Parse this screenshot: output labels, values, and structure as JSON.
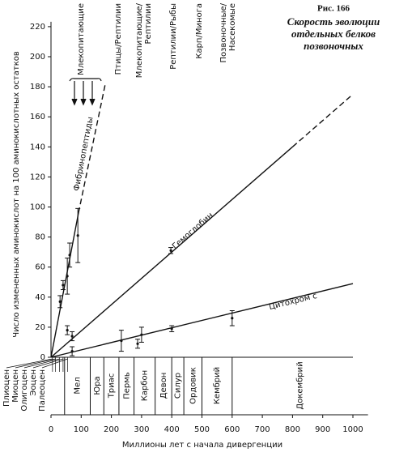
{
  "chart_data": {
    "type": "line",
    "figure_number": "Рис. 166",
    "title": [
      "Скорость эволюции",
      "отдельных белков",
      "позвоночных"
    ],
    "xlabel": "Миллионы лет с начала дивергенции",
    "ylabel": "Число измененных аминокислот на 100 аминокислотных остатков",
    "xlim": [
      0,
      1050
    ],
    "ylim": [
      0,
      230
    ],
    "xticks": [
      0,
      100,
      200,
      300,
      400,
      500,
      600,
      700,
      800,
      900,
      1000
    ],
    "yticks": [
      0,
      20,
      40,
      60,
      80,
      100,
      120,
      140,
      160,
      180,
      200,
      220
    ],
    "color": "#111111",
    "series": [
      {
        "name": "Фибринопептиды",
        "x": [
          0,
          91,
          180
        ],
        "values": [
          0,
          96,
          182
        ],
        "dashed_from": 1,
        "points": {
          "x": [
            30,
            40,
            54,
            62,
            89
          ],
          "values": [
            37,
            48,
            54,
            68,
            81
          ],
          "errors": [
            4,
            3,
            12,
            8,
            18
          ]
        }
      },
      {
        "name": "Гемоглобин",
        "x": [
          0,
          800,
          1000
        ],
        "values": [
          0,
          140,
          175
        ],
        "dashed_from": 1,
        "points": {
          "x": [
            54,
            70,
            397
          ],
          "values": [
            18,
            14,
            71
          ],
          "errors": [
            3,
            3,
            2
          ]
        }
      },
      {
        "name": "Цитохром с",
        "x": [
          0,
          1000
        ],
        "values": [
          0,
          49
        ],
        "dashed_from": null,
        "points": {
          "x": [
            70,
            233,
            287,
            300,
            400,
            600
          ],
          "values": [
            4,
            11,
            9,
            15,
            19,
            26
          ],
          "errors": [
            3,
            7,
            3,
            5,
            2,
            5
          ]
        }
      }
    ],
    "divergences": [
      {
        "label": "Млекопитающие",
        "x": 99
      },
      {
        "label": "Птицы/Рептилии",
        "x": 222
      },
      {
        "label": "Млекопитающие/ Рептилии",
        "x": 305
      },
      {
        "label": "Рептилии/Рыбы",
        "x": 405
      },
      {
        "label": "Карп/Минога",
        "x": 490
      },
      {
        "label": "Позвоночные/ Насекомые",
        "x": 585
      }
    ],
    "periods": [
      {
        "label": "Мел",
        "start": 45,
        "end": 130
      },
      {
        "label": "Юра",
        "start": 130,
        "end": 175
      },
      {
        "label": "Триас",
        "start": 175,
        "end": 225
      },
      {
        "label": "Пермь",
        "start": 225,
        "end": 275
      },
      {
        "label": "Карбон",
        "start": 275,
        "end": 345
      },
      {
        "label": "Девон",
        "start": 345,
        "end": 400
      },
      {
        "label": "Силур",
        "start": 400,
        "end": 440
      },
      {
        "label": "Ордовик",
        "start": 440,
        "end": 500
      },
      {
        "label": "Кембрий",
        "start": 500,
        "end": 600
      },
      {
        "label": "Докембрий",
        "start": 600,
        "end": 1050
      }
    ],
    "epochs": [
      {
        "label": "Плиоцен",
        "x": 5
      },
      {
        "label": "Миоцен",
        "x": 15
      },
      {
        "label": "Олигоцен",
        "x": 28
      },
      {
        "label": "Эоцен",
        "x": 40
      },
      {
        "label": "Палеоцен",
        "x": 55
      }
    ]
  }
}
